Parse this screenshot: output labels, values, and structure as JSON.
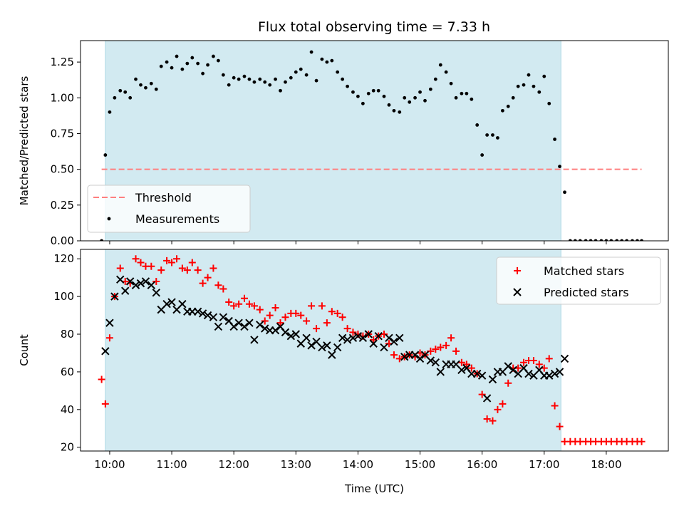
{
  "title": "Flux total observing time = 7.33 h",
  "colors": {
    "band": "#add8e6",
    "threshold": "#ff7f7f",
    "measurement": "#000000",
    "matched": "#ff0000",
    "predicted": "#000000"
  },
  "chart_data": [
    {
      "type": "scatter",
      "ylabel": "Matched/Predicted stars",
      "xlim": [
        9.53,
        19.0
      ],
      "ylim": [
        0,
        1.4
      ],
      "x_ticks": [
        10,
        11,
        12,
        13,
        14,
        15,
        16,
        17,
        18
      ],
      "y_ticks": [
        0,
        0.25,
        0.5,
        0.75,
        1.0,
        1.25
      ],
      "y_tick_labels": [
        "0.00",
        "0.25",
        "0.50",
        "0.75",
        "1.00",
        "1.25"
      ],
      "shaded_interval": [
        9.93,
        17.27
      ],
      "threshold": {
        "name": "Threshold",
        "y": 0.5,
        "x_range": [
          9.87,
          18.57
        ]
      },
      "legend_location": "lower-left",
      "series": [
        {
          "name": "Measurements",
          "marker": "dot",
          "x": [
            9.87,
            9.93,
            10.0,
            10.08,
            10.17,
            10.25,
            10.33,
            10.42,
            10.5,
            10.58,
            10.67,
            10.75,
            10.83,
            10.92,
            11.0,
            11.08,
            11.17,
            11.25,
            11.33,
            11.42,
            11.5,
            11.58,
            11.67,
            11.75,
            11.83,
            11.92,
            12.0,
            12.08,
            12.17,
            12.25,
            12.33,
            12.42,
            12.5,
            12.58,
            12.67,
            12.75,
            12.83,
            12.92,
            13.0,
            13.08,
            13.17,
            13.25,
            13.33,
            13.42,
            13.5,
            13.58,
            13.67,
            13.75,
            13.83,
            13.92,
            14.0,
            14.08,
            14.17,
            14.25,
            14.33,
            14.42,
            14.5,
            14.58,
            14.67,
            14.75,
            14.83,
            14.92,
            15.0,
            15.08,
            15.17,
            15.25,
            15.33,
            15.42,
            15.5,
            15.58,
            15.67,
            15.75,
            15.83,
            15.92,
            16.0,
            16.08,
            16.17,
            16.25,
            16.33,
            16.42,
            16.5,
            16.58,
            16.67,
            16.75,
            16.83,
            16.92,
            17.0,
            17.08,
            17.17,
            17.25,
            17.33,
            17.42,
            17.5,
            17.58,
            17.67,
            17.75,
            17.83,
            17.92,
            18.0,
            18.08,
            18.17,
            18.25,
            18.33,
            18.42,
            18.5,
            18.57
          ],
          "y": [
            0.0,
            0.6,
            0.9,
            1.0,
            1.05,
            1.04,
            1.0,
            1.13,
            1.09,
            1.07,
            1.1,
            1.06,
            1.22,
            1.25,
            1.21,
            1.29,
            1.2,
            1.24,
            1.28,
            1.24,
            1.17,
            1.23,
            1.29,
            1.26,
            1.16,
            1.09,
            1.14,
            1.13,
            1.15,
            1.13,
            1.11,
            1.13,
            1.11,
            1.09,
            1.13,
            1.05,
            1.11,
            1.14,
            1.18,
            1.2,
            1.16,
            1.32,
            1.12,
            1.27,
            1.25,
            1.26,
            1.18,
            1.13,
            1.08,
            1.04,
            1.01,
            0.96,
            1.03,
            1.05,
            1.05,
            1.01,
            0.95,
            0.91,
            0.9,
            1.0,
            0.97,
            1.0,
            1.04,
            0.98,
            1.06,
            1.13,
            1.23,
            1.18,
            1.1,
            1.0,
            1.03,
            1.03,
            0.99,
            0.81,
            0.6,
            0.74,
            0.74,
            0.72,
            0.91,
            0.94,
            1.0,
            1.08,
            1.09,
            1.16,
            1.08,
            1.04,
            1.15,
            0.96,
            0.71,
            0.52,
            0.34,
            0.0,
            0.0,
            0.0,
            0.0,
            0.0,
            0.0,
            0.0,
            0.0,
            0.0,
            0.0,
            0.0,
            0.0,
            0.0,
            0.0,
            0.0
          ]
        }
      ]
    },
    {
      "type": "scatter",
      "xlabel": "Time (UTC)",
      "ylabel": "Count",
      "xlim": [
        9.53,
        19.0
      ],
      "ylim": [
        18,
        125
      ],
      "x_ticks": [
        10,
        11,
        12,
        13,
        14,
        15,
        16,
        17,
        18
      ],
      "x_tick_labels": [
        "10:00",
        "11:00",
        "12:00",
        "13:00",
        "14:00",
        "15:00",
        "16:00",
        "17:00",
        "18:00"
      ],
      "y_ticks": [
        20,
        40,
        60,
        80,
        100,
        120
      ],
      "y_tick_labels": [
        "20",
        "40",
        "60",
        "80",
        "100",
        "120"
      ],
      "shaded_interval": [
        9.93,
        17.27
      ],
      "legend_location": "upper-right",
      "series": [
        {
          "name": "Matched stars",
          "marker": "plus",
          "x": [
            9.87,
            9.93,
            10.0,
            10.08,
            10.17,
            10.25,
            10.33,
            10.42,
            10.5,
            10.58,
            10.67,
            10.75,
            10.83,
            10.92,
            11.0,
            11.08,
            11.17,
            11.25,
            11.33,
            11.42,
            11.5,
            11.58,
            11.67,
            11.75,
            11.83,
            11.92,
            12.0,
            12.08,
            12.17,
            12.25,
            12.33,
            12.42,
            12.5,
            12.58,
            12.67,
            12.75,
            12.83,
            12.92,
            13.0,
            13.08,
            13.17,
            13.25,
            13.33,
            13.42,
            13.5,
            13.58,
            13.67,
            13.75,
            13.83,
            13.92,
            14.0,
            14.08,
            14.17,
            14.25,
            14.33,
            14.42,
            14.5,
            14.58,
            14.67,
            14.75,
            14.83,
            14.92,
            15.0,
            15.08,
            15.17,
            15.25,
            15.33,
            15.42,
            15.5,
            15.58,
            15.67,
            15.75,
            15.83,
            15.92,
            16.0,
            16.08,
            16.17,
            16.25,
            16.33,
            16.42,
            16.5,
            16.58,
            16.67,
            16.75,
            16.83,
            16.92,
            17.0,
            17.08,
            17.17,
            17.25,
            17.33,
            17.42,
            17.5,
            17.58,
            17.67,
            17.75,
            17.83,
            17.92,
            18.0,
            18.08,
            18.17,
            18.25,
            18.33,
            18.42,
            18.5,
            18.57
          ],
          "y": [
            56,
            43,
            78,
            100,
            115,
            108,
            107,
            120,
            118,
            116,
            116,
            108,
            114,
            119,
            118,
            120,
            115,
            114,
            118,
            114,
            107,
            110,
            115,
            106,
            104,
            97,
            95,
            96,
            99,
            96,
            95,
            93,
            87,
            90,
            94,
            86,
            89,
            91,
            91,
            90,
            87,
            95,
            83,
            95,
            86,
            92,
            91,
            89,
            83,
            81,
            80,
            79,
            80,
            77,
            79,
            80,
            75,
            69,
            67,
            68,
            69,
            68,
            70,
            69,
            71,
            72,
            73,
            74,
            78,
            71,
            65,
            64,
            62,
            59,
            48,
            35,
            34,
            40,
            43,
            54,
            62,
            62,
            65,
            66,
            66,
            64,
            62,
            67,
            42,
            31,
            23,
            23,
            23,
            23,
            23,
            23,
            23,
            23,
            23,
            23,
            23,
            23,
            23,
            23,
            23,
            23
          ]
        },
        {
          "name": "Predicted stars",
          "marker": "x",
          "x": [
            9.93,
            10.0,
            10.08,
            10.17,
            10.25,
            10.33,
            10.42,
            10.5,
            10.58,
            10.67,
            10.75,
            10.83,
            10.92,
            11.0,
            11.08,
            11.17,
            11.25,
            11.33,
            11.42,
            11.5,
            11.58,
            11.67,
            11.75,
            11.83,
            11.92,
            12.0,
            12.08,
            12.17,
            12.25,
            12.33,
            12.42,
            12.5,
            12.58,
            12.67,
            12.75,
            12.83,
            12.92,
            13.0,
            13.08,
            13.17,
            13.25,
            13.33,
            13.42,
            13.5,
            13.58,
            13.67,
            13.75,
            13.83,
            13.92,
            14.0,
            14.08,
            14.17,
            14.25,
            14.33,
            14.42,
            14.5,
            14.58,
            14.67,
            14.75,
            14.83,
            14.92,
            15.0,
            15.08,
            15.17,
            15.25,
            15.33,
            15.42,
            15.5,
            15.58,
            15.67,
            15.75,
            15.83,
            15.92,
            16.0,
            16.08,
            16.17,
            16.25,
            16.33,
            16.42,
            16.5,
            16.58,
            16.67,
            16.75,
            16.83,
            16.92,
            17.0,
            17.08,
            17.17,
            17.25,
            17.33
          ],
          "y": [
            71,
            86,
            100,
            109,
            103,
            108,
            106,
            107,
            108,
            106,
            102,
            93,
            96,
            97,
            93,
            96,
            92,
            92,
            92,
            91,
            90,
            89,
            84,
            89,
            87,
            84,
            86,
            84,
            86,
            77,
            85,
            83,
            82,
            82,
            84,
            81,
            79,
            80,
            75,
            78,
            74,
            76,
            73,
            74,
            69,
            73,
            78,
            77,
            78,
            79,
            78,
            80,
            75,
            79,
            73,
            78,
            76,
            78,
            68,
            69,
            69,
            67,
            69,
            66,
            65,
            60,
            64,
            64,
            64,
            61,
            62,
            59,
            59,
            58,
            46,
            56,
            60,
            60,
            63,
            61,
            59,
            62,
            59,
            58,
            61,
            58,
            58,
            59,
            60,
            67
          ]
        }
      ]
    }
  ]
}
